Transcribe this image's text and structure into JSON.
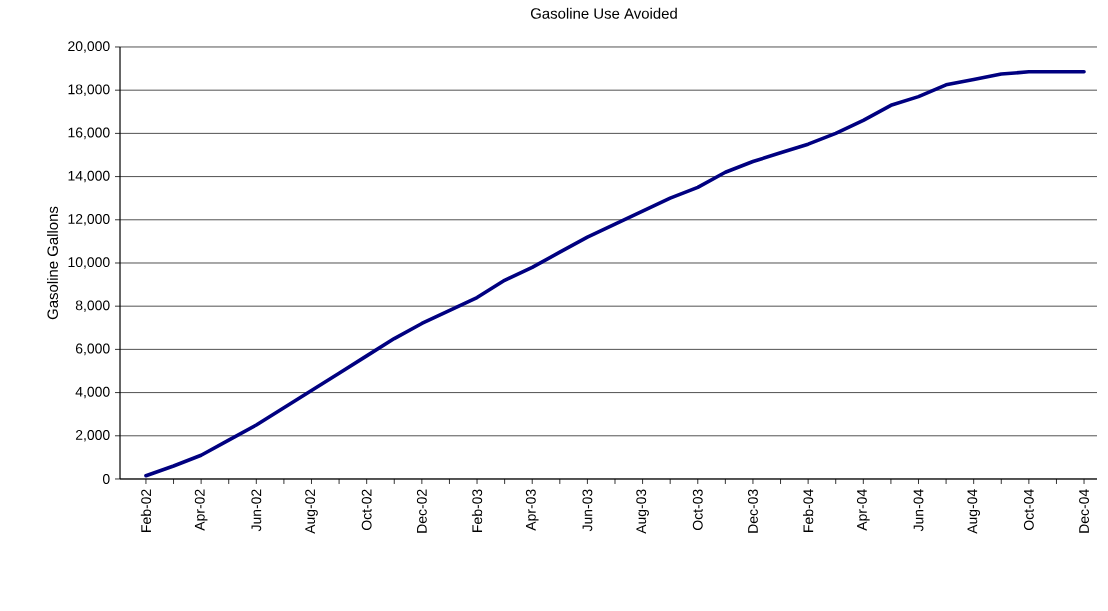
{
  "chart_data": {
    "type": "line",
    "title": "Gasoline Use Avoided",
    "ylabel": "Gasoline Gallons",
    "categories": [
      "Feb-02",
      null,
      "Apr-02",
      null,
      "Jun-02",
      null,
      "Aug-02",
      null,
      "Oct-02",
      null,
      "Dec-02",
      null,
      "Feb-03",
      null,
      "Apr-03",
      null,
      "Jun-03",
      null,
      "Aug-03",
      null,
      "Oct-03",
      null,
      "Dec-03",
      null,
      "Feb-04",
      null,
      "Apr-04",
      null,
      "Jun-04",
      null,
      "Aug-04",
      null,
      "Oct-04",
      null,
      "Dec-04"
    ],
    "series": [
      {
        "color": "#000080",
        "values": [
          150,
          600,
          1100,
          1800,
          2500,
          3300,
          4100,
          4900,
          5700,
          6500,
          7200,
          7800,
          8400,
          9200,
          9800,
          10500,
          11200,
          11800,
          12400,
          13000,
          13500,
          14200,
          14700,
          15100,
          15500,
          16000,
          16600,
          17300,
          17700,
          18250,
          18500,
          18750,
          18850,
          18850,
          18850
        ]
      }
    ],
    "ylim": [
      0,
      20000
    ],
    "yticks": [
      {
        "value": 0,
        "label": "0"
      },
      {
        "value": 2000,
        "label": "2,000"
      },
      {
        "value": 4000,
        "label": "4,000"
      },
      {
        "value": 6000,
        "label": "6,000"
      },
      {
        "value": 8000,
        "label": "8,000"
      },
      {
        "value": 10000,
        "label": "10,000"
      },
      {
        "value": 12000,
        "label": "12,000"
      },
      {
        "value": 14000,
        "label": "14,000"
      },
      {
        "value": 16000,
        "label": "16,000"
      },
      {
        "value": 18000,
        "label": "18,000"
      },
      {
        "value": 20000,
        "label": "20,000"
      }
    ],
    "grid": "y"
  }
}
